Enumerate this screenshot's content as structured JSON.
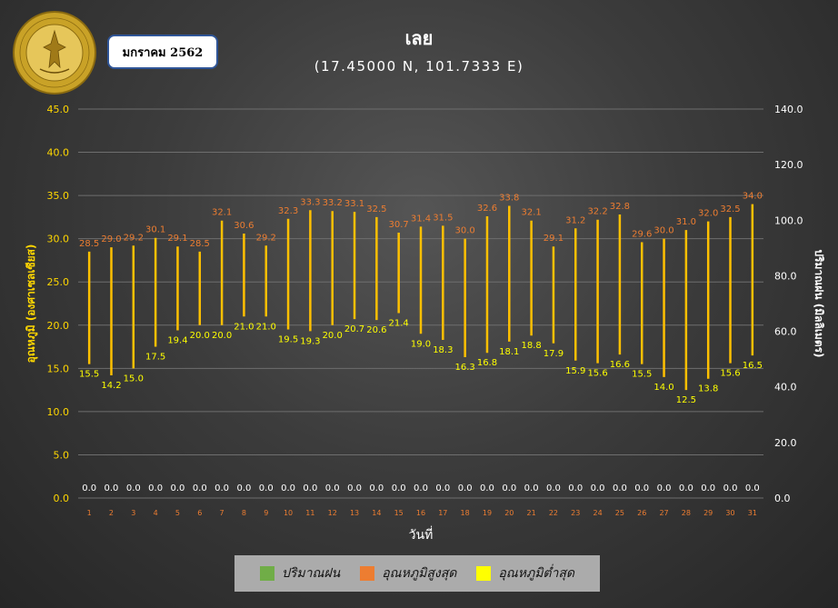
{
  "header": {
    "month_label": "มกราคม 2562",
    "title": "เลย",
    "subtitle": "(17.45000 N, 101.7333 E)"
  },
  "logo": {
    "text_top": "กรมอุตุนิยมวิทยา",
    "text_bottom": "METEOROLOGICAL DEPARTMENT"
  },
  "colors": {
    "rain": "#70ad47",
    "max": "#ed7d31",
    "min": "#ffff00",
    "bar": "#ffc000",
    "left_axis_text": "#ffd700",
    "max_label": "#ed7d31",
    "min_label": "#ffff00",
    "rain_label": "#ffffff",
    "x_tick": "#ed7d31"
  },
  "chart_data": {
    "type": "bar",
    "xlabel": "วันที่",
    "ylabel": "อุณหภูมิ (องศาเซลเซียส)",
    "y2label": "ปริมาณฝน (มิลลิเมตร)",
    "categories": [
      "1",
      "2",
      "3",
      "4",
      "5",
      "6",
      "7",
      "8",
      "9",
      "10",
      "11",
      "12",
      "13",
      "14",
      "15",
      "16",
      "17",
      "18",
      "19",
      "20",
      "21",
      "22",
      "23",
      "24",
      "25",
      "26",
      "27",
      "28",
      "29",
      "30",
      "31"
    ],
    "ylim": [
      0,
      45
    ],
    "yticks": [
      "0.0",
      "5.0",
      "10.0",
      "15.0",
      "20.0",
      "25.0",
      "30.0",
      "35.0",
      "40.0",
      "45.0"
    ],
    "y2lim": [
      0,
      140
    ],
    "y2ticks": [
      "0.0",
      "20.0",
      "40.0",
      "60.0",
      "80.0",
      "100.0",
      "120.0",
      "140.0"
    ],
    "grid": true,
    "legend_position": "bottom",
    "series": [
      {
        "name": "ปริมาณฝน",
        "values": [
          0,
          0,
          0,
          0,
          0,
          0,
          0,
          0,
          0,
          0,
          0,
          0,
          0,
          0,
          0,
          0,
          0,
          0,
          0,
          0,
          0,
          0,
          0,
          0,
          0,
          0,
          0,
          0,
          0,
          0,
          0
        ],
        "labels": [
          "0.0",
          "0.0",
          "0.0",
          "0.0",
          "0.0",
          "0.0",
          "0.0",
          "0.0",
          "0.0",
          "0.0",
          "0.0",
          "0.0",
          "0.0",
          "0.0",
          "0.0",
          "0.0",
          "0.0",
          "0.0",
          "0.0",
          "0.0",
          "0.0",
          "0.0",
          "0.0",
          "0.0",
          "0.0",
          "0.0",
          "0.0",
          "0.0",
          "0.0",
          "0.0",
          "0.0"
        ]
      },
      {
        "name": "อุณหภูมิสูงสุด",
        "values": [
          28.5,
          29.0,
          29.2,
          30.1,
          29.1,
          28.5,
          32.1,
          30.6,
          29.2,
          32.3,
          33.3,
          33.2,
          33.1,
          32.5,
          30.7,
          31.4,
          31.5,
          30.0,
          32.6,
          33.8,
          32.1,
          29.1,
          31.2,
          32.2,
          32.8,
          29.6,
          30.0,
          31.0,
          32.0,
          32.5,
          34.0
        ],
        "labels": [
          "28.5",
          "29.0",
          "29.2",
          "30.1",
          "29.1",
          "28.5",
          "32.1",
          "30.6",
          "29.2",
          "32.3",
          "33.3",
          "33.2",
          "33.1",
          "32.5",
          "30.7",
          "31.4",
          "31.5",
          "30.0",
          "32.6",
          "33.8",
          "32.1",
          "29.1",
          "31.2",
          "32.2",
          "32.8",
          "29.6",
          "30.0",
          "31.0",
          "32.0",
          "32.5",
          "34.0"
        ]
      },
      {
        "name": "อุณหภูมิต่ำสุด",
        "values": [
          15.5,
          14.2,
          15.0,
          17.5,
          19.4,
          20.0,
          20.0,
          21.0,
          21.0,
          19.5,
          19.3,
          20.0,
          20.7,
          20.6,
          21.4,
          19.0,
          18.3,
          16.3,
          16.8,
          18.1,
          18.8,
          17.9,
          15.9,
          15.6,
          16.6,
          15.5,
          14.0,
          12.5,
          13.8,
          15.6,
          16.5
        ],
        "labels": [
          "15.5",
          "14.2",
          "15.0",
          "17.5",
          "19.4",
          "20.0",
          "20.0",
          "21.0",
          "21.0",
          "19.5",
          "19.3",
          "20.0",
          "20.7",
          "20.6",
          "21.4",
          "19.0",
          "18.3",
          "16.3",
          "16.8",
          "18.1",
          "18.8",
          "17.9",
          "15.9",
          "15.6",
          "16.6",
          "15.5",
          "14.0",
          "12.5",
          "13.8",
          "15.6",
          "16.5"
        ]
      }
    ]
  }
}
